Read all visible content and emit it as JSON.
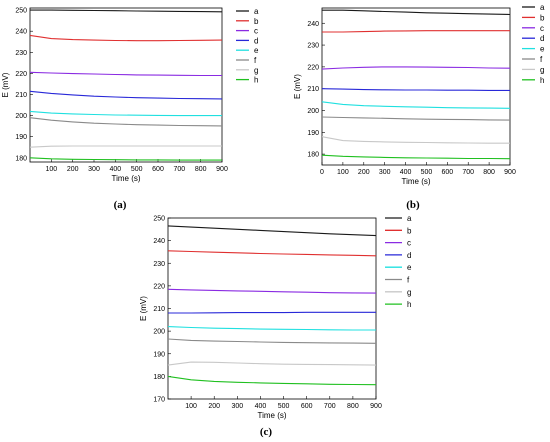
{
  "figure": {
    "panel_labels": [
      "(a)",
      "(b)",
      "(c)"
    ]
  },
  "colors": {
    "a": "#1a1a1a",
    "b": "#e03030",
    "c": "#8a2be2",
    "d": "#2828d8",
    "e": "#20e0e0",
    "f": "#8a8a8a",
    "g": "#c8c8c8",
    "h": "#20c020"
  },
  "chart_data": [
    {
      "type": "line",
      "panel": "(a)",
      "xlabel": "Time (s)",
      "ylabel": "E (mV)",
      "xlim": [
        0,
        900
      ],
      "ylim": [
        178,
        251
      ],
      "xticks": [
        100,
        200,
        300,
        400,
        500,
        600,
        700,
        800,
        900
      ],
      "yticks": [
        180,
        190,
        200,
        210,
        220,
        230,
        240,
        250
      ],
      "x": [
        0,
        100,
        200,
        300,
        400,
        500,
        600,
        700,
        800,
        900
      ],
      "series": [
        {
          "name": "a",
          "values": [
            250,
            250,
            249.9,
            249.8,
            249.7,
            249.6,
            249.5,
            249.4,
            249.3,
            249.2
          ]
        },
        {
          "name": "b",
          "values": [
            238,
            236.5,
            236,
            235.8,
            235.6,
            235.5,
            235.5,
            235.6,
            235.7,
            235.8
          ]
        },
        {
          "name": "c",
          "values": [
            220.5,
            220.2,
            219.9,
            219.7,
            219.5,
            219.3,
            219.2,
            219.1,
            219.0,
            219.0
          ]
        },
        {
          "name": "d",
          "values": [
            211.5,
            210.5,
            209.8,
            209.2,
            208.8,
            208.5,
            208.3,
            208.1,
            208.0,
            207.9
          ]
        },
        {
          "name": "e",
          "values": [
            202,
            201.2,
            200.8,
            200.5,
            200.3,
            200.2,
            200.1,
            200.0,
            200.0,
            200.0
          ]
        },
        {
          "name": "f",
          "values": [
            199,
            197.8,
            197,
            196.4,
            196,
            195.7,
            195.5,
            195.3,
            195.2,
            195.1
          ]
        },
        {
          "name": "g",
          "values": [
            185,
            185.5,
            185.6,
            185.6,
            185.6,
            185.6,
            185.6,
            185.6,
            185.6,
            185.6
          ]
        },
        {
          "name": "h",
          "values": [
            180,
            179.5,
            179.3,
            179.2,
            179.1,
            179.0,
            179.0,
            178.9,
            178.9,
            178.9
          ]
        }
      ]
    },
    {
      "type": "line",
      "panel": "(b)",
      "xlabel": "Time (s)",
      "ylabel": "E (mV)",
      "xlim": [
        0,
        900
      ],
      "ylim": [
        175,
        247
      ],
      "xticks": [
        0,
        100,
        200,
        300,
        400,
        500,
        600,
        700,
        800,
        900
      ],
      "yticks": [
        180,
        190,
        200,
        210,
        220,
        230,
        240
      ],
      "x": [
        0,
        100,
        200,
        300,
        400,
        500,
        600,
        700,
        800,
        900
      ],
      "series": [
        {
          "name": "a",
          "values": [
            246,
            246,
            245.7,
            245.4,
            245.1,
            244.8,
            244.6,
            244.4,
            244.2,
            244.0
          ]
        },
        {
          "name": "b",
          "values": [
            236,
            236,
            236.2,
            236.4,
            236.5,
            236.6,
            236.6,
            236.6,
            236.6,
            236.6
          ]
        },
        {
          "name": "c",
          "values": [
            219,
            219.5,
            219.8,
            220,
            220,
            219.9,
            219.8,
            219.7,
            219.5,
            219.4
          ]
        },
        {
          "name": "d",
          "values": [
            210,
            209.8,
            209.6,
            209.5,
            209.4,
            209.4,
            209.3,
            209.3,
            209.2,
            209.2
          ]
        },
        {
          "name": "e",
          "values": [
            204,
            202.8,
            202.2,
            201.9,
            201.7,
            201.5,
            201.3,
            201.2,
            201.1,
            201.0
          ]
        },
        {
          "name": "f",
          "values": [
            197,
            196.8,
            196.6,
            196.4,
            196.2,
            196.0,
            195.9,
            195.8,
            195.7,
            195.6
          ]
        },
        {
          "name": "g",
          "values": [
            188,
            186.2,
            185.8,
            185.6,
            185.4,
            185.3,
            185.2,
            185.1,
            185.0,
            185.0
          ]
        },
        {
          "name": "h",
          "values": [
            179.5,
            179,
            178.7,
            178.5,
            178.3,
            178.2,
            178.1,
            178.0,
            178.0,
            177.9
          ]
        }
      ]
    },
    {
      "type": "line",
      "panel": "(c)",
      "xlabel": "Time (s)",
      "ylabel": "E (mV)",
      "xlim": [
        0,
        900
      ],
      "ylim": [
        170,
        250
      ],
      "xticks": [
        100,
        200,
        300,
        400,
        500,
        600,
        700,
        800,
        900
      ],
      "yticks": [
        170,
        180,
        190,
        200,
        210,
        220,
        230,
        240,
        250
      ],
      "x": [
        0,
        100,
        200,
        300,
        400,
        500,
        600,
        700,
        800,
        900
      ],
      "series": [
        {
          "name": "a",
          "values": [
            246.5,
            246,
            245.5,
            245,
            244.5,
            244,
            243.5,
            243,
            242.6,
            242.2
          ]
        },
        {
          "name": "b",
          "values": [
            235.5,
            235.2,
            234.9,
            234.6,
            234.3,
            234.1,
            233.9,
            233.7,
            233.5,
            233.3
          ]
        },
        {
          "name": "c",
          "values": [
            218.5,
            218.2,
            218,
            217.8,
            217.6,
            217.4,
            217.2,
            217.0,
            216.9,
            216.8
          ]
        },
        {
          "name": "d",
          "values": [
            208,
            208,
            208.1,
            208.2,
            208.2,
            208.2,
            208.3,
            208.3,
            208.3,
            208.3
          ]
        },
        {
          "name": "e",
          "values": [
            202,
            201.6,
            201.3,
            201.1,
            200.9,
            200.8,
            200.7,
            200.6,
            200.5,
            200.5
          ]
        },
        {
          "name": "f",
          "values": [
            196.5,
            195.9,
            195.6,
            195.4,
            195.2,
            195.0,
            194.9,
            194.8,
            194.7,
            194.6
          ]
        },
        {
          "name": "g",
          "values": [
            185,
            186.3,
            186.2,
            185.9,
            185.6,
            185.4,
            185.3,
            185.2,
            185.1,
            185.0
          ]
        },
        {
          "name": "h",
          "values": [
            180,
            178.5,
            177.8,
            177.4,
            177.1,
            176.9,
            176.7,
            176.5,
            176.4,
            176.3
          ]
        }
      ]
    }
  ]
}
